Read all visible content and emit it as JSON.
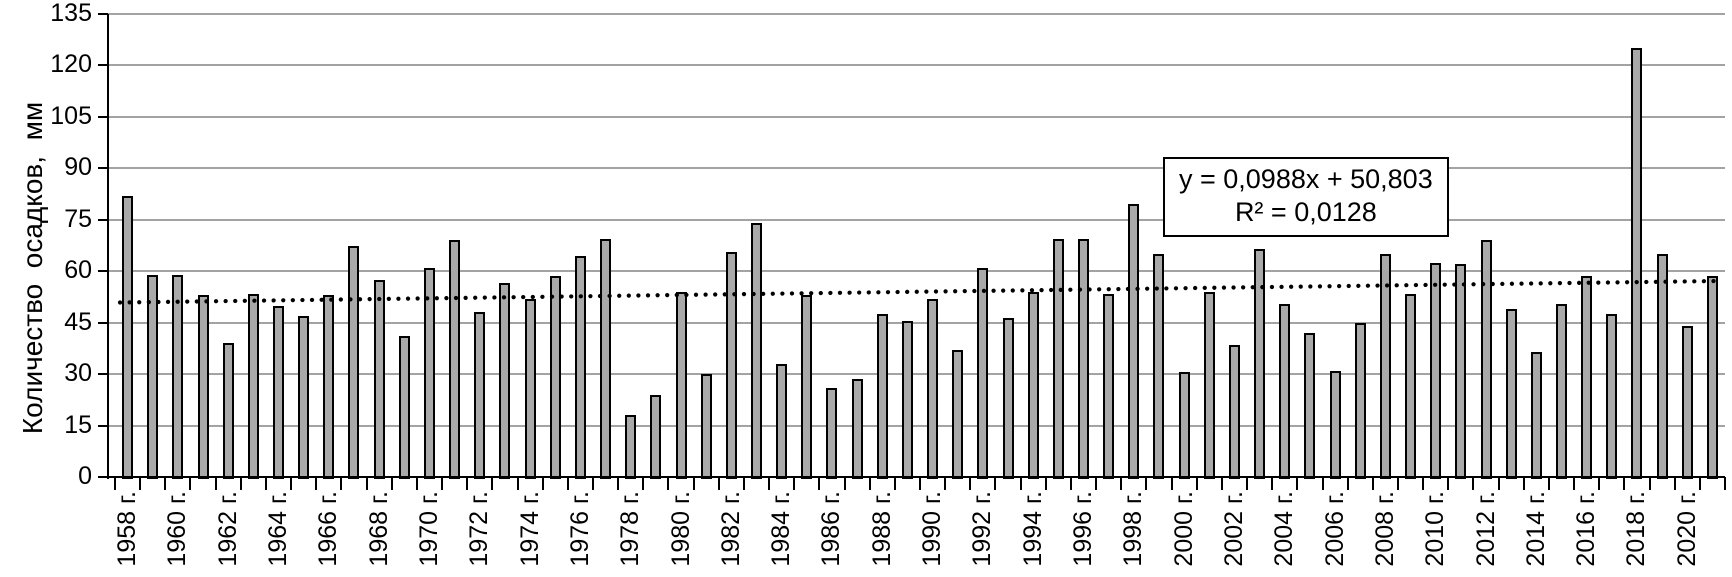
{
  "chart_data": {
    "type": "bar",
    "title": "",
    "ylabel": "Количество  осадков,  мм",
    "xlabel": "",
    "ylim": [
      0,
      135
    ],
    "ytick_step": 15,
    "ytick_labels": [
      "0",
      "15",
      "30",
      "45",
      "60",
      "75",
      "90",
      "105",
      "120",
      "135"
    ],
    "grid": true,
    "legend_position": "none",
    "x_tick_label_suffix": " г.",
    "x_labeled_every": 2,
    "categories": [
      1958,
      1959,
      1960,
      1961,
      1962,
      1963,
      1964,
      1965,
      1966,
      1967,
      1968,
      1969,
      1970,
      1971,
      1972,
      1973,
      1974,
      1975,
      1976,
      1977,
      1978,
      1979,
      1980,
      1981,
      1982,
      1983,
      1984,
      1985,
      1986,
      1987,
      1988,
      1989,
      1990,
      1991,
      1992,
      1993,
      1994,
      1995,
      1996,
      1997,
      1998,
      1999,
      2000,
      2001,
      2002,
      2003,
      2004,
      2005,
      2006,
      2007,
      2008,
      2009,
      2010,
      2011,
      2012,
      2013,
      2014,
      2015,
      2016,
      2017,
      2018,
      2019,
      2020,
      2021
    ],
    "values": [
      82,
      59,
      59,
      53,
      39,
      53.5,
      50,
      47,
      53,
      67.5,
      57.5,
      41,
      61,
      69,
      48,
      56.5,
      52,
      58.5,
      64.5,
      69.5,
      18,
      24,
      54,
      30,
      65.5,
      74,
      33,
      53,
      26,
      28.5,
      47.5,
      45.5,
      52,
      37,
      61,
      46.5,
      54,
      69.5,
      69.5,
      53.5,
      79.5,
      65,
      30.5,
      54,
      38.5,
      66.5,
      50.5,
      42,
      31,
      45,
      65,
      53.5,
      62.5,
      62,
      69,
      49,
      36.5,
      50.5,
      58.5,
      47.5,
      125,
      65,
      44,
      58.5
    ],
    "trendline": {
      "equation": "y = 0,0988x + 50,803",
      "r2": "R² = 0,0128",
      "slope": 0.0988,
      "intercept": 50.803,
      "style": "dotted",
      "color": "#000000"
    },
    "bar_color": "#a9a9a9",
    "bar_border_color": "#000000",
    "gridline_color": "#a3a3a3",
    "axis_color": "#000000"
  }
}
